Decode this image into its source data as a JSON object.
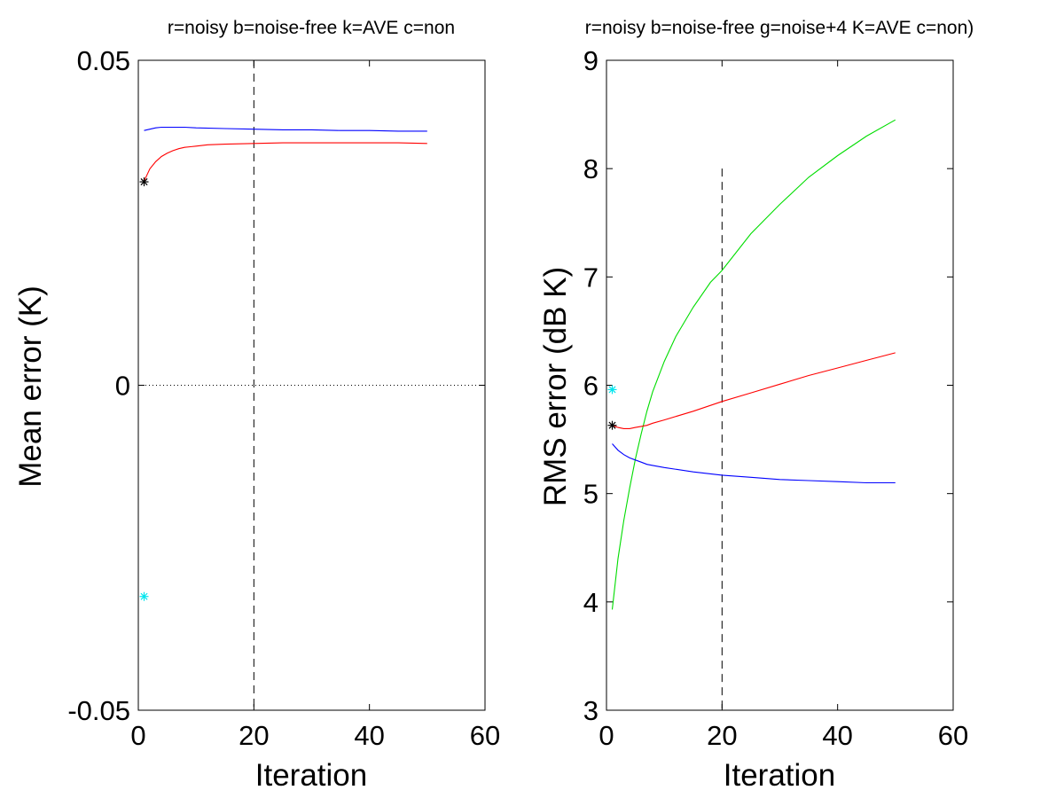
{
  "chart_data": [
    {
      "type": "line",
      "title": "r=noisy b=noise-free k=AVE c=non",
      "xlabel": "Iteration",
      "ylabel": "Mean error (K)",
      "xlim": [
        0,
        60
      ],
      "ylim": [
        -0.05,
        0.05
      ],
      "xticks": [
        0,
        20,
        40,
        60
      ],
      "xtick_labels": [
        "0",
        "20",
        "40",
        "60"
      ],
      "yticks": [
        -0.05,
        0,
        0.05
      ],
      "ytick_labels": [
        "-0.05",
        "0",
        "0.05"
      ],
      "grid": false,
      "legend": "none",
      "zero_line": {
        "y": 0,
        "style": "dotted",
        "color": "#000000"
      },
      "vline": {
        "x": 20,
        "y_range": [
          -0.05,
          0.05
        ],
        "style": "dashed",
        "color": "#000000"
      },
      "series": [
        {
          "color": "#0000ff",
          "x": [
            1,
            2,
            3,
            4,
            5,
            6,
            7,
            8,
            10,
            15,
            20,
            25,
            30,
            35,
            40,
            45,
            50
          ],
          "y": [
            0.0392,
            0.0394,
            0.0396,
            0.0397,
            0.0397,
            0.0397,
            0.0397,
            0.0397,
            0.0396,
            0.0395,
            0.0394,
            0.0393,
            0.0393,
            0.0392,
            0.0392,
            0.0391,
            0.0391
          ]
        },
        {
          "color": "#ff0000",
          "x": [
            1,
            2,
            3,
            4,
            5,
            6,
            7,
            8,
            9,
            10,
            12,
            15,
            20,
            25,
            30,
            35,
            40,
            45,
            50
          ],
          "y": [
            0.0314,
            0.0333,
            0.0344,
            0.0352,
            0.0357,
            0.0361,
            0.0364,
            0.0366,
            0.0367,
            0.0368,
            0.037,
            0.0371,
            0.0372,
            0.0373,
            0.0373,
            0.0373,
            0.0373,
            0.0373,
            0.0372
          ]
        }
      ],
      "markers": [
        {
          "x": 1,
          "y": 0.0313,
          "symbol": "asterisk",
          "color": "#000000"
        },
        {
          "x": 1,
          "y": -0.0325,
          "symbol": "asterisk",
          "color": "#00e5ee"
        }
      ]
    },
    {
      "type": "line",
      "title": "r=noisy b=noise-free g=noise+4 K=AVE c=non)",
      "xlabel": "Iteration",
      "ylabel": "RMS error (dB K)",
      "xlim": [
        0,
        60
      ],
      "ylim": [
        3,
        9
      ],
      "xticks": [
        0,
        20,
        40,
        60
      ],
      "xtick_labels": [
        "0",
        "20",
        "40",
        "60"
      ],
      "yticks": [
        3,
        4,
        5,
        6,
        7,
        8,
        9
      ],
      "ytick_labels": [
        "3",
        "4",
        "5",
        "6",
        "7",
        "8",
        "9"
      ],
      "grid": false,
      "legend": "none",
      "vline": {
        "x": 20,
        "y_range": [
          3,
          8
        ],
        "style": "dashed",
        "color": "#000000"
      },
      "series": [
        {
          "color": "#00dd00",
          "x": [
            1,
            2,
            3,
            4,
            5,
            6,
            7,
            8,
            10,
            12,
            15,
            18,
            20,
            25,
            30,
            35,
            40,
            45,
            50
          ],
          "y": [
            3.93,
            4.4,
            4.75,
            5.05,
            5.32,
            5.55,
            5.76,
            5.94,
            6.22,
            6.45,
            6.72,
            6.95,
            7.06,
            7.4,
            7.67,
            7.92,
            8.12,
            8.3,
            8.45
          ]
        },
        {
          "color": "#ff0000",
          "x": [
            1,
            2,
            3,
            4,
            5,
            6,
            7,
            8,
            10,
            15,
            20,
            25,
            30,
            35,
            40,
            45,
            50
          ],
          "y": [
            5.63,
            5.61,
            5.6,
            5.6,
            5.61,
            5.62,
            5.63,
            5.65,
            5.68,
            5.76,
            5.85,
            5.93,
            6.01,
            6.09,
            6.16,
            6.23,
            6.3
          ]
        },
        {
          "color": "#0000ff",
          "x": [
            1,
            2,
            3,
            4,
            5,
            6,
            7,
            8,
            10,
            15,
            20,
            25,
            30,
            35,
            40,
            45,
            50
          ],
          "y": [
            5.46,
            5.4,
            5.36,
            5.33,
            5.31,
            5.29,
            5.27,
            5.26,
            5.24,
            5.2,
            5.17,
            5.15,
            5.13,
            5.12,
            5.11,
            5.1,
            5.1
          ]
        }
      ],
      "markers": [
        {
          "x": 1,
          "y": 5.63,
          "symbol": "asterisk",
          "color": "#000000"
        },
        {
          "x": 1,
          "y": 5.96,
          "symbol": "asterisk",
          "color": "#00e5ee"
        }
      ]
    }
  ]
}
